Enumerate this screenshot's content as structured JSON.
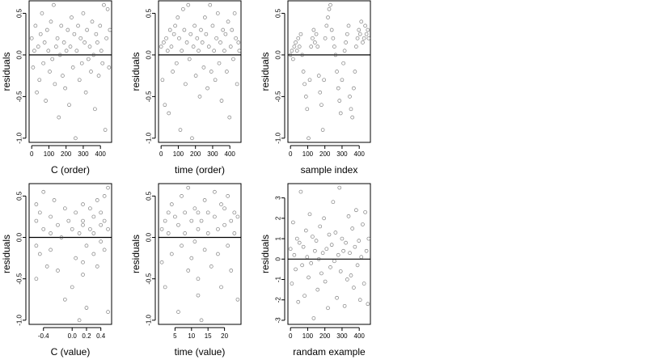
{
  "chart_data": [
    {
      "type": "scatter",
      "title": "",
      "xlabel": "C (order)",
      "ylabel": "residuals",
      "xlim": [
        -15,
        465
      ],
      "ylim": [
        -1.05,
        0.65
      ],
      "xticks": [
        0,
        100,
        200,
        300,
        400
      ],
      "xtick_labels": [
        "0",
        "100",
        "200",
        "300",
        "400"
      ],
      "yticks": [
        -1.0,
        -0.5,
        0.0,
        0.5
      ],
      "ytick_labels": [
        "-1.0",
        "-0.5",
        "0.0",
        "0.5"
      ],
      "hline": 0,
      "grid": false,
      "legend": "none",
      "series": [
        {
          "x": [
            0,
            8,
            15,
            22,
            30,
            38,
            45,
            52,
            60,
            68,
            75,
            82,
            90,
            97,
            105,
            112,
            120,
            128,
            135,
            142,
            150,
            158,
            165,
            172,
            180,
            188,
            195,
            202,
            210,
            218,
            225,
            232,
            240,
            248,
            255,
            262,
            270,
            278,
            285,
            292,
            300,
            308,
            315,
            322,
            330,
            338,
            345,
            352,
            360,
            368,
            375,
            382,
            390,
            398,
            405,
            412,
            420,
            428,
            435,
            442,
            450,
            455
          ],
          "y": [
            0.2,
            -0.15,
            0.05,
            0.35,
            -0.45,
            0.1,
            -0.3,
            0.25,
            0.5,
            -0.1,
            0.15,
            -0.55,
            0.3,
            0.05,
            -0.2,
            0.4,
            -0.05,
            0.6,
            -0.35,
            0.1,
            0.2,
            -0.75,
            0.0,
            0.35,
            -0.25,
            0.15,
            -0.4,
            0.05,
            0.3,
            -0.6,
            0.1,
            0.45,
            -0.15,
            0.25,
            -1.0,
            0.05,
            0.35,
            -0.3,
            0.2,
            -0.1,
            0.5,
            0.15,
            -0.45,
            0.3,
            -0.05,
            0.1,
            -0.2,
            0.4,
            0.0,
            -0.65,
            0.25,
            0.15,
            -0.25,
            0.35,
            0.05,
            -0.1,
            0.6,
            -0.9,
            0.2,
            0.55,
            -0.15,
            0.3
          ]
        }
      ]
    },
    {
      "type": "scatter",
      "title": "",
      "xlabel": "time (order)",
      "ylabel": "residuals",
      "xlim": [
        -15,
        465
      ],
      "ylim": [
        -1.05,
        0.65
      ],
      "xticks": [
        0,
        100,
        200,
        300,
        400
      ],
      "xtick_labels": [
        "0",
        "100",
        "200",
        "300",
        "400"
      ],
      "yticks": [
        -1.0,
        -0.5,
        0.0,
        0.5
      ],
      "ytick_labels": [
        "-1.0",
        "-0.5",
        "0.0",
        "0.5"
      ],
      "hline": 0,
      "grid": false,
      "legend": "none",
      "series": [
        {
          "x": [
            0,
            8,
            15,
            22,
            30,
            38,
            45,
            52,
            60,
            68,
            75,
            82,
            90,
            97,
            105,
            112,
            120,
            128,
            135,
            142,
            150,
            158,
            165,
            172,
            180,
            188,
            195,
            202,
            210,
            218,
            225,
            232,
            240,
            248,
            255,
            262,
            270,
            278,
            285,
            292,
            300,
            308,
            315,
            322,
            330,
            338,
            345,
            352,
            360,
            368,
            375,
            382,
            390,
            398,
            405,
            412,
            420,
            428,
            435,
            442,
            450,
            455
          ],
          "y": [
            0.1,
            -0.3,
            0.15,
            -0.6,
            0.2,
            0.05,
            -0.7,
            0.3,
            0.1,
            -0.2,
            0.25,
            0.35,
            -0.1,
            0.45,
            0.2,
            -0.9,
            0.05,
            0.55,
            0.3,
            -0.35,
            0.15,
            0.6,
            -0.05,
            0.25,
            -1.0,
            0.1,
            0.35,
            -0.25,
            0.2,
            0.05,
            -0.5,
            0.3,
            0.15,
            -0.15,
            0.45,
            0.25,
            -0.4,
            0.1,
            0.6,
            -0.2,
            0.35,
            0.05,
            -0.3,
            0.2,
            0.5,
            -0.1,
            0.15,
            -0.55,
            0.3,
            0.05,
            0.25,
            -0.2,
            0.4,
            -0.75,
            0.1,
            0.3,
            -0.05,
            0.5,
            0.2,
            -0.35,
            0.15,
            0.05
          ]
        }
      ]
    },
    {
      "type": "scatter",
      "title": "",
      "xlabel": "sample index",
      "ylabel": "residuals",
      "xlim": [
        -15,
        465
      ],
      "ylim": [
        -1.05,
        0.65
      ],
      "xticks": [
        0,
        100,
        200,
        300,
        400
      ],
      "xtick_labels": [
        "0",
        "100",
        "200",
        "300",
        "400"
      ],
      "yticks": [
        -1.0,
        -0.5,
        0.0,
        0.5
      ],
      "ytick_labels": [
        "-1.0",
        "-0.5",
        "0.0",
        "0.5"
      ],
      "hline": 0,
      "grid": false,
      "legend": "none",
      "series": [
        {
          "x": [
            0,
            8,
            15,
            22,
            30,
            38,
            45,
            52,
            60,
            68,
            75,
            82,
            90,
            97,
            105,
            112,
            120,
            128,
            135,
            142,
            150,
            158,
            165,
            172,
            180,
            188,
            195,
            202,
            210,
            218,
            225,
            232,
            240,
            248,
            255,
            262,
            270,
            278,
            285,
            292,
            300,
            308,
            315,
            322,
            330,
            338,
            345,
            352,
            360,
            368,
            375,
            382,
            390,
            398,
            405,
            412,
            420,
            428,
            435,
            442,
            450,
            455
          ],
          "y": [
            0.0,
            0.05,
            -0.05,
            0.1,
            0.15,
            0.05,
            0.2,
            0.1,
            0.25,
            0.0,
            -0.2,
            -0.35,
            -0.5,
            -0.65,
            -1.0,
            -0.3,
            0.1,
            0.2,
            0.3,
            0.15,
            0.25,
            0.1,
            -0.25,
            -0.45,
            -0.6,
            -0.9,
            -0.3,
            0.2,
            0.35,
            0.45,
            0.55,
            0.6,
            0.3,
            0.2,
            0.1,
            0.0,
            -0.2,
            -0.4,
            -0.55,
            -0.7,
            -0.3,
            -0.1,
            0.05,
            0.15,
            0.25,
            0.35,
            -0.5,
            -0.65,
            -0.75,
            -0.4,
            -0.2,
            0.1,
            0.2,
            0.3,
            0.25,
            0.4,
            0.15,
            0.2,
            0.35,
            0.25,
            0.3,
            0.2
          ]
        }
      ]
    },
    {
      "type": "scatter",
      "title": "",
      "xlabel": "C (value)",
      "ylabel": "residuals",
      "xlim": [
        -0.6,
        0.55
      ],
      "ylim": [
        -1.05,
        0.65
      ],
      "xticks": [
        -0.4,
        0.0,
        0.2,
        0.4
      ],
      "xtick_labels": [
        "-0.4",
        "0.0",
        "0.2",
        "0.4"
      ],
      "yticks": [
        -1.0,
        -0.5,
        0.0,
        0.5
      ],
      "ytick_labels": [
        "-1.0",
        "-0.5",
        "0.0",
        "0.5"
      ],
      "hline": 0,
      "grid": false,
      "legend": "none",
      "series": [
        {
          "x": [
            -0.5,
            -0.5,
            -0.5,
            -0.5,
            -0.45,
            -0.45,
            -0.4,
            -0.4,
            -0.35,
            -0.3,
            -0.3,
            -0.3,
            -0.25,
            -0.2,
            -0.2,
            -0.15,
            -0.1,
            -0.1,
            -0.05,
            0.0,
            0.0,
            0.05,
            0.05,
            0.1,
            0.1,
            0.15,
            0.15,
            0.15,
            0.15,
            0.15,
            0.2,
            0.2,
            0.25,
            0.25,
            0.3,
            0.3,
            0.3,
            0.35,
            0.35,
            0.4,
            0.4,
            0.4,
            0.45,
            0.45,
            0.45,
            0.5,
            0.5,
            0.5
          ],
          "y": [
            0.2,
            -0.1,
            0.4,
            -0.5,
            0.3,
            -0.2,
            0.55,
            0.1,
            -0.35,
            0.25,
            0.05,
            -0.15,
            0.45,
            -0.4,
            0.15,
            0.0,
            0.35,
            -0.75,
            0.2,
            -0.6,
            0.1,
            0.3,
            -0.25,
            -1.0,
            0.05,
            0.4,
            0.2,
            -0.3,
            -0.45,
            0.15,
            -0.1,
            -0.85,
            0.35,
            0.1,
            0.25,
            -0.2,
            0.05,
            0.45,
            -0.35,
            0.3,
            0.15,
            -0.05,
            0.5,
            0.2,
            -0.15,
            0.6,
            0.1,
            -0.9
          ]
        }
      ]
    },
    {
      "type": "scatter",
      "title": "",
      "xlabel": "time (value)",
      "ylabel": "residuals",
      "xlim": [
        0,
        25
      ],
      "ylim": [
        -1.05,
        0.65
      ],
      "xticks": [
        5,
        10,
        15,
        20
      ],
      "xtick_labels": [
        "5",
        "10",
        "15",
        "20"
      ],
      "yticks": [
        -1.0,
        -0.5,
        0.0,
        0.5
      ],
      "ytick_labels": [
        "-1.0",
        "-0.5",
        "0.0",
        "0.5"
      ],
      "hline": 0,
      "grid": false,
      "legend": "none",
      "series": [
        {
          "x": [
            1,
            1,
            2,
            2,
            3,
            3,
            4,
            4,
            5,
            6,
            6,
            7,
            7,
            8,
            8,
            9,
            9,
            10,
            10,
            11,
            11,
            12,
            12,
            12,
            12,
            13,
            13,
            14,
            14,
            15,
            15,
            16,
            17,
            17,
            18,
            18,
            19,
            19,
            20,
            20,
            21,
            21,
            22,
            22,
            23,
            23,
            24,
            24
          ],
          "y": [
            0.1,
            -0.3,
            0.2,
            -0.6,
            0.3,
            0.05,
            -0.2,
            0.4,
            0.25,
            -0.9,
            0.15,
            0.5,
            -0.1,
            0.3,
            0.05,
            -0.4,
            0.6,
            0.2,
            -0.25,
            0.35,
            -0.05,
            0.3,
            -0.5,
            -0.7,
            0.1,
            -1.0,
            0.2,
            0.45,
            -0.15,
            0.3,
            0.05,
            -0.35,
            0.25,
            0.55,
            -0.2,
            0.1,
            0.4,
            -0.6,
            0.15,
            0.35,
            -0.1,
            0.5,
            0.2,
            -0.4,
            0.3,
            0.05,
            -0.75,
            0.25
          ]
        }
      ]
    },
    {
      "type": "scatter",
      "title": "",
      "xlabel": "randam example",
      "ylabel": "residuals",
      "xlim": [
        -15,
        465
      ],
      "ylim": [
        -3.2,
        3.7
      ],
      "xticks": [
        0,
        100,
        200,
        300,
        400
      ],
      "xtick_labels": [
        "0",
        "100",
        "200",
        "300",
        "400"
      ],
      "yticks": [
        -3,
        -2,
        -1,
        0,
        1,
        2,
        3
      ],
      "ytick_labels": [
        "-3",
        "-2",
        "-1",
        "0",
        "1",
        "2",
        "3"
      ],
      "hline": 0,
      "grid": false,
      "legend": "none",
      "series": [
        {
          "x": [
            0,
            8,
            15,
            22,
            30,
            38,
            45,
            52,
            60,
            68,
            75,
            82,
            90,
            97,
            105,
            112,
            120,
            128,
            135,
            142,
            150,
            158,
            165,
            172,
            180,
            188,
            195,
            202,
            210,
            218,
            225,
            232,
            240,
            248,
            255,
            262,
            270,
            278,
            285,
            292,
            300,
            308,
            315,
            322,
            330,
            338,
            345,
            352,
            360,
            368,
            375,
            382,
            390,
            398,
            405,
            412,
            420,
            428,
            435,
            442,
            450,
            455
          ],
          "y": [
            0.5,
            -1.2,
            1.8,
            0.2,
            -0.5,
            1.0,
            -2.1,
            0.8,
            3.3,
            -0.3,
            0.6,
            -1.8,
            1.4,
            0.1,
            -0.9,
            2.2,
            -0.2,
            1.1,
            -2.9,
            0.4,
            0.9,
            -1.5,
            0.0,
            1.6,
            -0.7,
            0.3,
            2.0,
            -1.1,
            0.5,
            -2.4,
            1.2,
            -0.4,
            0.7,
            2.8,
            -0.1,
            1.3,
            -1.9,
            0.2,
            3.5,
            -0.6,
            1.0,
            0.4,
            -2.3,
            0.8,
            -1.0,
            2.1,
            0.3,
            -0.8,
            1.5,
            -1.4,
            0.6,
            2.4,
            -0.3,
            0.9,
            -2.0,
            0.1,
            1.7,
            -1.2,
            2.3,
            0.4,
            -2.2,
            1.0
          ]
        }
      ]
    }
  ]
}
